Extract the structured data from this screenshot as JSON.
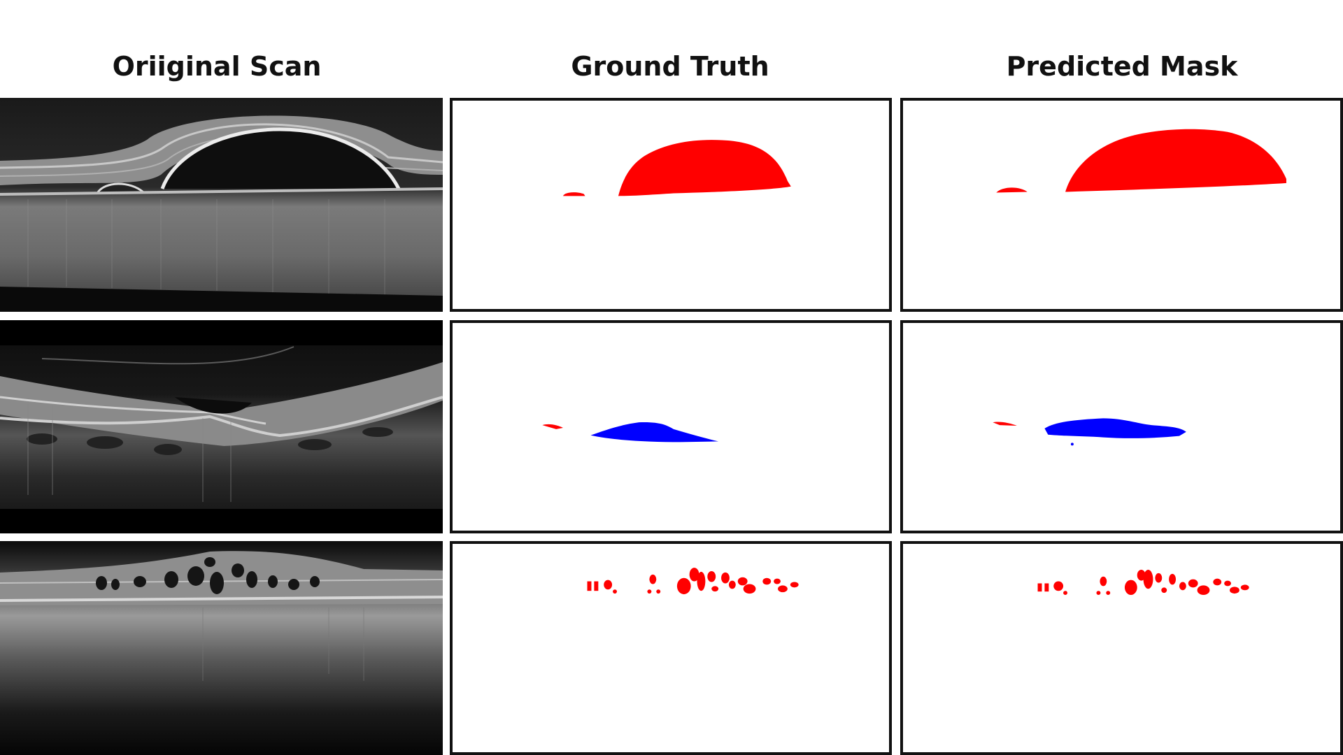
{
  "headers": {
    "original": "Oriiginal Scan",
    "ground_truth": "Ground Truth",
    "predicted": "Predicted Mask"
  },
  "colors": {
    "background": "#ffffff",
    "panel_border": "#111111",
    "fluid_red": "#ff0000",
    "fluid_blue": "#0000ff",
    "scan_background": "#000000"
  },
  "rows": [
    {
      "scan": "oct-scan-row-1",
      "ground_truth": "mask-row-1",
      "predicted": "mask-row-1"
    },
    {
      "scan": "oct-scan-row-2",
      "ground_truth": "mask-row-2",
      "predicted": "mask-row-2"
    },
    {
      "scan": "oct-scan-row-3",
      "ground_truth": "mask-row-3",
      "predicted": "mask-row-3"
    }
  ]
}
